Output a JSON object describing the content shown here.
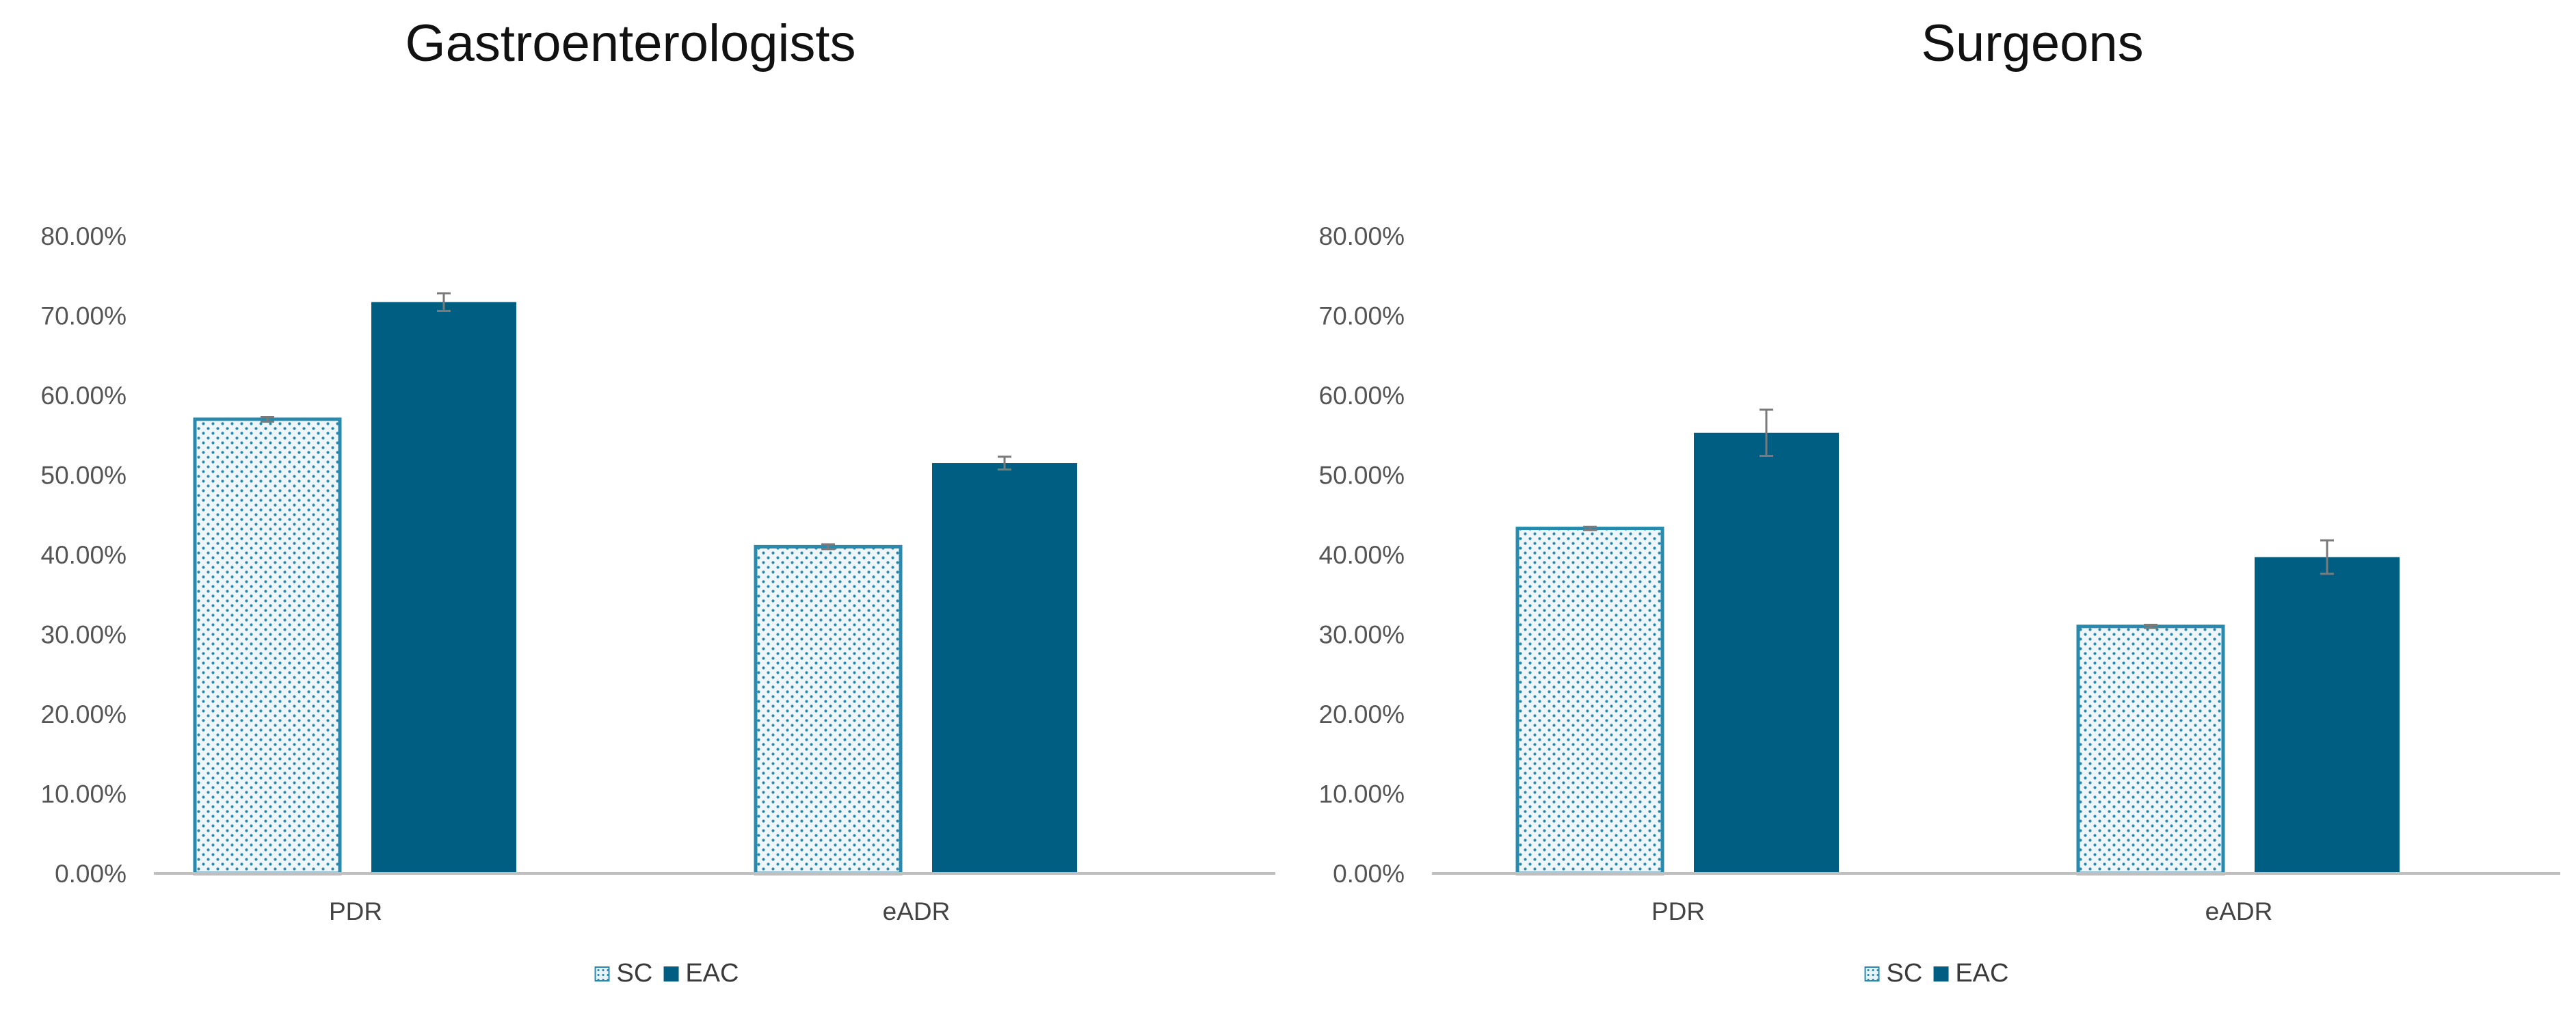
{
  "chart_data": [
    {
      "type": "bar",
      "title": "Gastroenterologists",
      "categories": [
        "PDR",
        "eADR"
      ],
      "series": [
        {
          "name": "SC",
          "values": [
            0.57,
            0.41
          ],
          "error": [
            0.003,
            0.003
          ],
          "color": "#2a8aae",
          "pattern": "dotted"
        },
        {
          "name": "EAC",
          "values": [
            0.717,
            0.515
          ],
          "error": [
            0.011,
            0.008
          ],
          "color": "#005e82",
          "pattern": "solid"
        }
      ],
      "ylim": [
        0,
        0.8
      ],
      "yticks": [
        "0.00%",
        "10.00%",
        "20.00%",
        "30.00%",
        "40.00%",
        "50.00%",
        "60.00%",
        "70.00%",
        "80.00%"
      ],
      "legend": "bottom",
      "grid": false,
      "xlabel": "",
      "ylabel": ""
    },
    {
      "type": "bar",
      "title": "Surgeons",
      "categories": [
        "PDR",
        "eADR"
      ],
      "series": [
        {
          "name": "SC",
          "values": [
            0.433,
            0.31
          ],
          "error": [
            0.002,
            0.002
          ],
          "color": "#2a8aae",
          "pattern": "dotted"
        },
        {
          "name": "EAC",
          "values": [
            0.553,
            0.397
          ],
          "error": [
            0.029,
            0.021
          ],
          "color": "#005e82",
          "pattern": "solid"
        }
      ],
      "ylim": [
        0,
        0.8
      ],
      "yticks": [
        "0.00%",
        "10.00%",
        "20.00%",
        "30.00%",
        "40.00%",
        "50.00%",
        "60.00%",
        "70.00%",
        "80.00%"
      ],
      "legend": "bottom",
      "grid": false,
      "xlabel": "",
      "ylabel": ""
    }
  ]
}
